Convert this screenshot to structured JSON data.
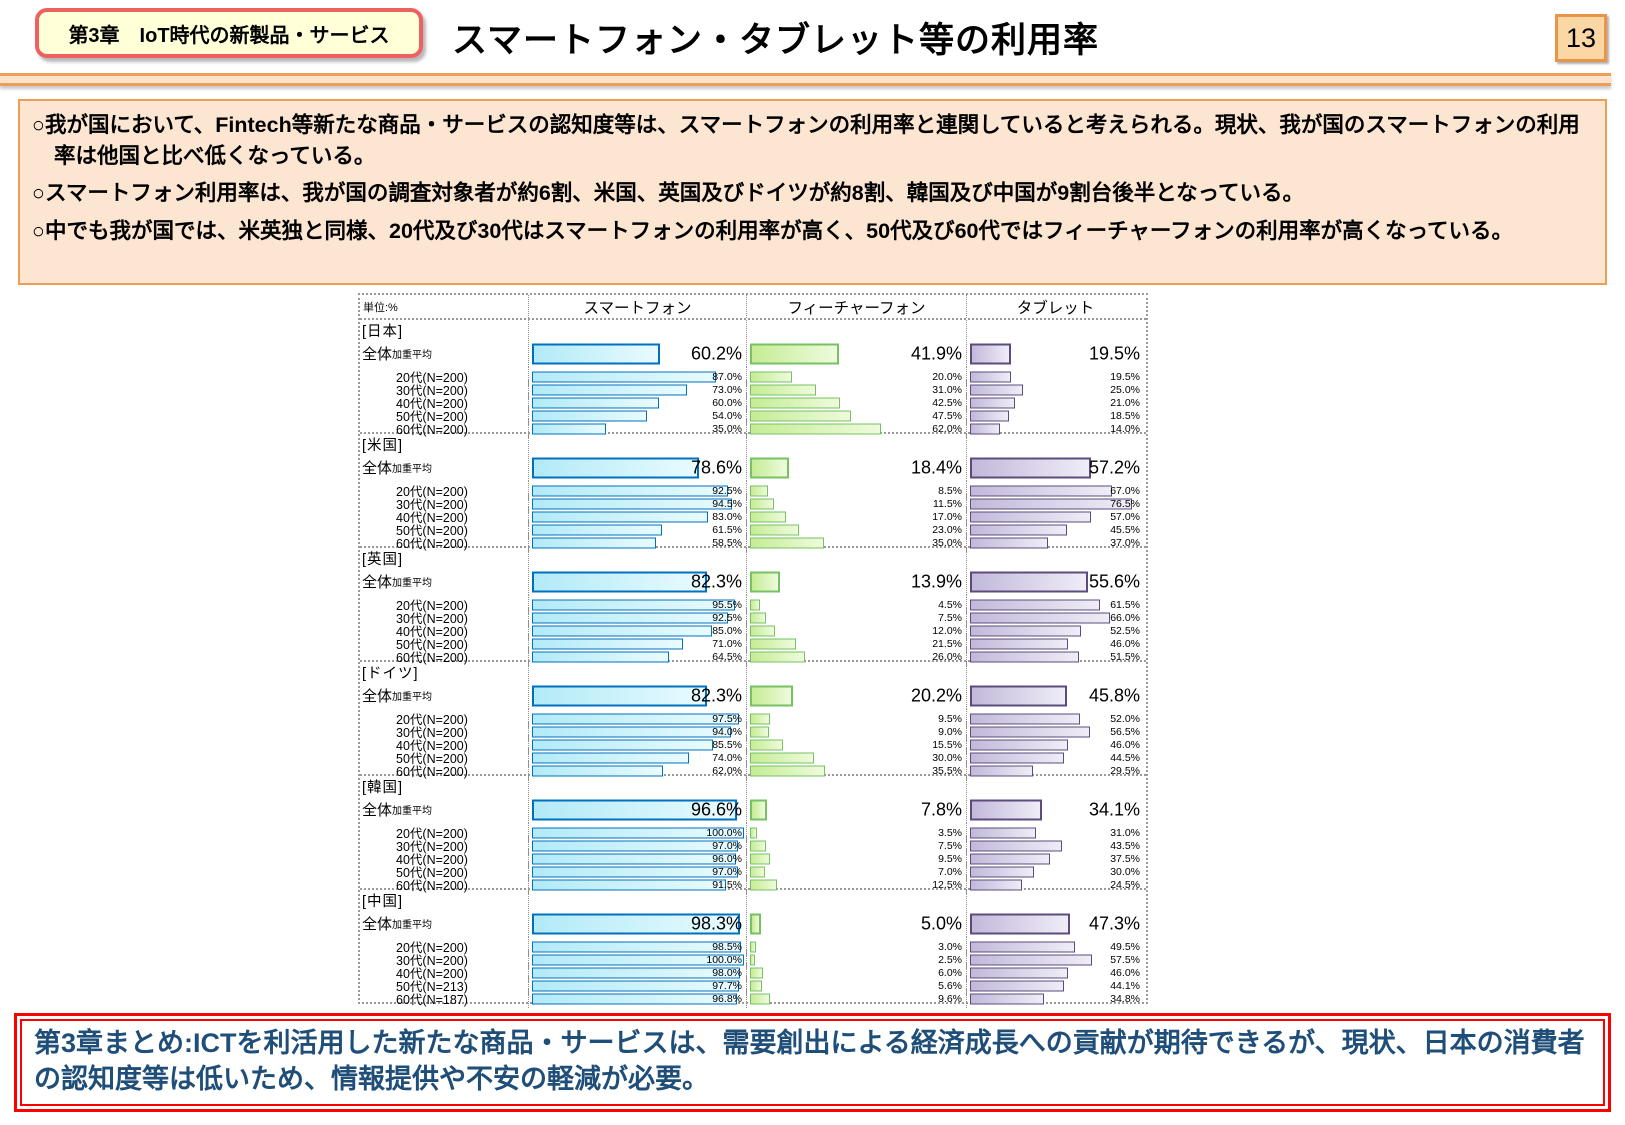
{
  "header": {
    "chapter_badge": "第3章　IoT時代の新製品・サービス",
    "title": "スマートフォン・タブレット等の利用率",
    "page_number": "13"
  },
  "summary_box": {
    "bullets": [
      "○我が国において、Fintech等新たな商品・サービスの認知度等は、スマートフォンの利用率と連関していると考えられる。現状、我が国のスマートフォンの利用率は他国と比べ低くなっている。",
      "○スマートフォン利用率は、我が国の調査対象者が約6割、米国、英国及びドイツが約8割、韓国及び中国が9割台後半となっている。",
      "○中でも我が国では、米英独と同様、20代及び30代はスマートフォンの利用率が高く、50代及び60代ではフィーチャーフォンの利用率が高くなっている。"
    ]
  },
  "chart_data": {
    "type": "bar",
    "orientation": "horizontal",
    "unit_label": "単位:%",
    "columns": [
      "スマートフォン",
      "フィーチャーフォン",
      "タブレット"
    ],
    "total_label": {
      "main": "全体",
      "sub": "加重平均"
    },
    "value_suffix": "%",
    "xlim": [
      0,
      100
    ],
    "colors": {
      "smartphone": {
        "border": "#0070c0",
        "fill_from": "#b2eaf7",
        "fill_to": "#e9fbff"
      },
      "featurephone": {
        "border": "#77c063",
        "fill_from": "#c5ec95",
        "fill_to": "#eefbdc"
      },
      "tablet": {
        "border": "#5d4b7e",
        "fill_from": "#c2b9da",
        "fill_to": "#efedf7"
      }
    },
    "countries": [
      {
        "name": "[日本]",
        "total": {
          "smartphone": 60.2,
          "featurephone": 41.9,
          "tablet": 19.5
        },
        "rows": [
          {
            "label": "20代(N=200)",
            "smartphone": 87.0,
            "featurephone": 20.0,
            "tablet": 19.5
          },
          {
            "label": "30代(N=200)",
            "smartphone": 73.0,
            "featurephone": 31.0,
            "tablet": 25.0
          },
          {
            "label": "40代(N=200)",
            "smartphone": 60.0,
            "featurephone": 42.5,
            "tablet": 21.0
          },
          {
            "label": "50代(N=200)",
            "smartphone": 54.0,
            "featurephone": 47.5,
            "tablet": 18.5
          },
          {
            "label": "60代(N=200)",
            "smartphone": 35.0,
            "featurephone": 62.0,
            "tablet": 14.0
          }
        ]
      },
      {
        "name": "[米国]",
        "total": {
          "smartphone": 78.6,
          "featurephone": 18.4,
          "tablet": 57.2
        },
        "rows": [
          {
            "label": "20代(N=200)",
            "smartphone": 92.5,
            "featurephone": 8.5,
            "tablet": 67.0
          },
          {
            "label": "30代(N=200)",
            "smartphone": 94.5,
            "featurephone": 11.5,
            "tablet": 76.5
          },
          {
            "label": "40代(N=200)",
            "smartphone": 83.0,
            "featurephone": 17.0,
            "tablet": 57.0
          },
          {
            "label": "50代(N=200)",
            "smartphone": 61.5,
            "featurephone": 23.0,
            "tablet": 45.5
          },
          {
            "label": "60代(N=200)",
            "smartphone": 58.5,
            "featurephone": 35.0,
            "tablet": 37.0
          }
        ]
      },
      {
        "name": "[英国]",
        "total": {
          "smartphone": 82.3,
          "featurephone": 13.9,
          "tablet": 55.6
        },
        "rows": [
          {
            "label": "20代(N=200)",
            "smartphone": 95.5,
            "featurephone": 4.5,
            "tablet": 61.5
          },
          {
            "label": "30代(N=200)",
            "smartphone": 92.5,
            "featurephone": 7.5,
            "tablet": 66.0
          },
          {
            "label": "40代(N=200)",
            "smartphone": 85.0,
            "featurephone": 12.0,
            "tablet": 52.5
          },
          {
            "label": "50代(N=200)",
            "smartphone": 71.0,
            "featurephone": 21.5,
            "tablet": 46.0
          },
          {
            "label": "60代(N=200)",
            "smartphone": 64.5,
            "featurephone": 26.0,
            "tablet": 51.5
          }
        ]
      },
      {
        "name": "[ドイツ]",
        "total": {
          "smartphone": 82.3,
          "featurephone": 20.2,
          "tablet": 45.8
        },
        "rows": [
          {
            "label": "20代(N=200)",
            "smartphone": 97.5,
            "featurephone": 9.5,
            "tablet": 52.0
          },
          {
            "label": "30代(N=200)",
            "smartphone": 94.0,
            "featurephone": 9.0,
            "tablet": 56.5
          },
          {
            "label": "40代(N=200)",
            "smartphone": 85.5,
            "featurephone": 15.5,
            "tablet": 46.0
          },
          {
            "label": "50代(N=200)",
            "smartphone": 74.0,
            "featurephone": 30.0,
            "tablet": 44.5
          },
          {
            "label": "60代(N=200)",
            "smartphone": 62.0,
            "featurephone": 35.5,
            "tablet": 29.5
          }
        ]
      },
      {
        "name": "[韓国]",
        "total": {
          "smartphone": 96.6,
          "featurephone": 7.8,
          "tablet": 34.1
        },
        "rows": [
          {
            "label": "20代(N=200)",
            "smartphone": 100.0,
            "featurephone": 3.5,
            "tablet": 31.0
          },
          {
            "label": "30代(N=200)",
            "smartphone": 97.0,
            "featurephone": 7.5,
            "tablet": 43.5
          },
          {
            "label": "40代(N=200)",
            "smartphone": 96.0,
            "featurephone": 9.5,
            "tablet": 37.5
          },
          {
            "label": "50代(N=200)",
            "smartphone": 97.0,
            "featurephone": 7.0,
            "tablet": 30.0
          },
          {
            "label": "60代(N=200)",
            "smartphone": 91.5,
            "featurephone": 12.5,
            "tablet": 24.5
          }
        ]
      },
      {
        "name": "[中国]",
        "total": {
          "smartphone": 98.3,
          "featurephone": 5.0,
          "tablet": 47.3
        },
        "rows": [
          {
            "label": "20代(N=200)",
            "smartphone": 98.5,
            "featurephone": 3.0,
            "tablet": 49.5
          },
          {
            "label": "30代(N=200)",
            "smartphone": 100.0,
            "featurephone": 2.5,
            "tablet": 57.5
          },
          {
            "label": "40代(N=200)",
            "smartphone": 98.0,
            "featurephone": 6.0,
            "tablet": 46.0
          },
          {
            "label": "50代(N=213)",
            "smartphone": 97.7,
            "featurephone": 5.6,
            "tablet": 44.1
          },
          {
            "label": "60代(N=187)",
            "smartphone": 96.8,
            "featurephone": 9.6,
            "tablet": 34.8
          }
        ]
      }
    ]
  },
  "footer_box": {
    "text": "第3章まとめ:ICTを利活用した新たな商品・サービスは、需要創出による経済成長への貢献が期待できるが、現状、日本の消費者の認知度等は低いため、情報提供や不安の軽減が必要。"
  },
  "colors": {
    "chapter_badge_bg": "#ffffd8",
    "chapter_badge_border": "#ee6161",
    "page_number_bg": "#fbd7a6",
    "page_number_border": "#e8954a",
    "summary_bg": "#fce5d1",
    "summary_border": "#eb9e55",
    "footer_border": "#ff0000",
    "footer_text": "#1f4e79"
  }
}
